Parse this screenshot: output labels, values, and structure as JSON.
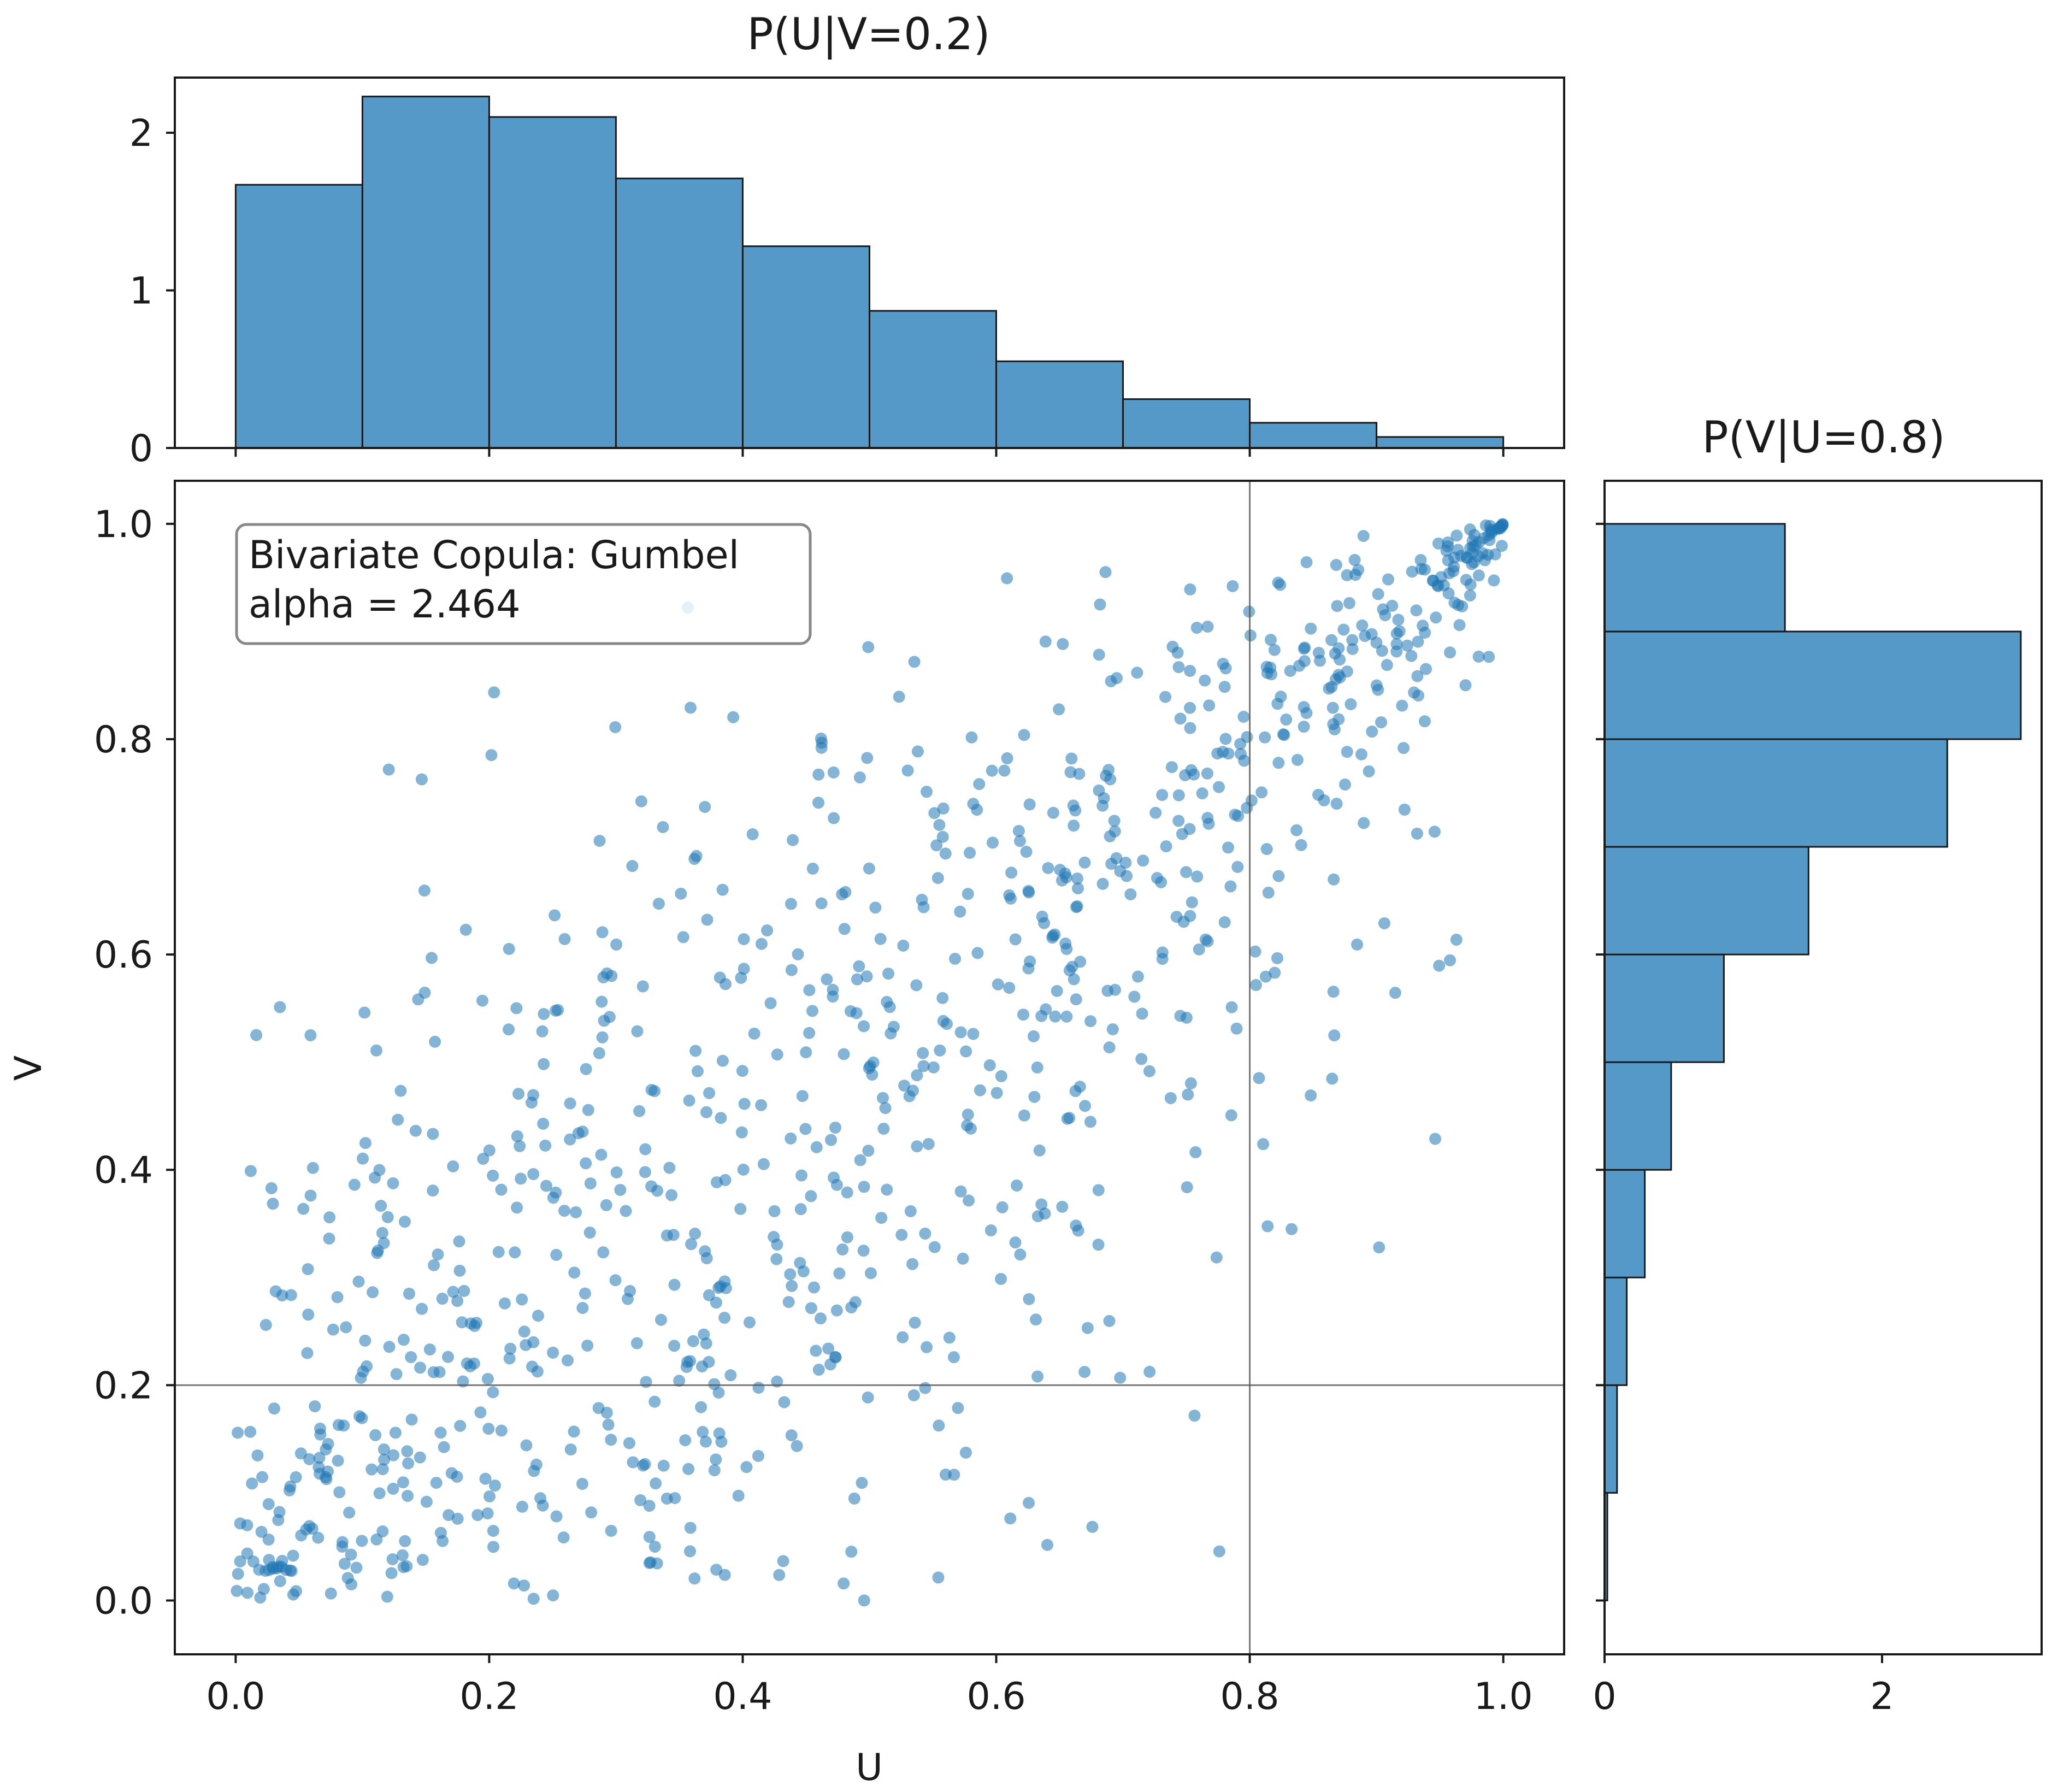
{
  "chart_data": [
    {
      "id": "top_hist",
      "type": "bar",
      "title": "P(U|V=0.2)",
      "orientation": "vertical",
      "bin_edges": [
        0.0,
        0.1,
        0.2,
        0.3,
        0.4,
        0.5,
        0.6,
        0.7,
        0.8,
        0.9,
        1.0
      ],
      "values": [
        1.67,
        2.23,
        2.1,
        1.71,
        1.28,
        0.87,
        0.55,
        0.31,
        0.16,
        0.07
      ],
      "xlim": [
        -0.048,
        1.048
      ],
      "ylim": [
        0,
        2.35
      ],
      "yticks": [
        0,
        1,
        2
      ],
      "ytick_labels": [
        "0",
        "1",
        "2"
      ],
      "color": "#5499c7"
    },
    {
      "id": "scatter",
      "type": "scatter",
      "xlabel": "U",
      "ylabel": "V",
      "xlim": [
        -0.048,
        1.048
      ],
      "ylim": [
        -0.05,
        1.04
      ],
      "xticks": [
        0.0,
        0.2,
        0.4,
        0.6,
        0.8,
        1.0
      ],
      "xtick_labels": [
        "0.0",
        "0.2",
        "0.4",
        "0.6",
        "0.8",
        "1.0"
      ],
      "yticks": [
        0.0,
        0.2,
        0.4,
        0.6,
        0.8,
        1.0
      ],
      "ytick_labels": [
        "0.0",
        "0.2",
        "0.4",
        "0.6",
        "0.8",
        "1.0"
      ],
      "reference_lines": {
        "u": 0.8,
        "v": 0.2
      },
      "legend": {
        "placement": "top-left",
        "lines": [
          "Bivariate Copula: Gumbel",
          "alpha = 2.464"
        ]
      },
      "n_points": 1000,
      "copula_alpha": 2.464,
      "color": "#1f77b4",
      "points": []
    },
    {
      "id": "right_hist",
      "type": "bar",
      "title": "P(V|U=0.8)",
      "orientation": "horizontal",
      "bin_edges": [
        0.0,
        0.1,
        0.2,
        0.3,
        0.4,
        0.5,
        0.6,
        0.7,
        0.8,
        0.9,
        1.0
      ],
      "values": [
        0.02,
        0.09,
        0.16,
        0.29,
        0.48,
        0.86,
        1.47,
        2.47,
        3.0,
        1.3
      ],
      "xlim": [
        0,
        3.15
      ],
      "xticks": [
        0,
        2
      ],
      "xtick_labels": [
        "0",
        "2"
      ],
      "color": "#5499c7"
    }
  ]
}
